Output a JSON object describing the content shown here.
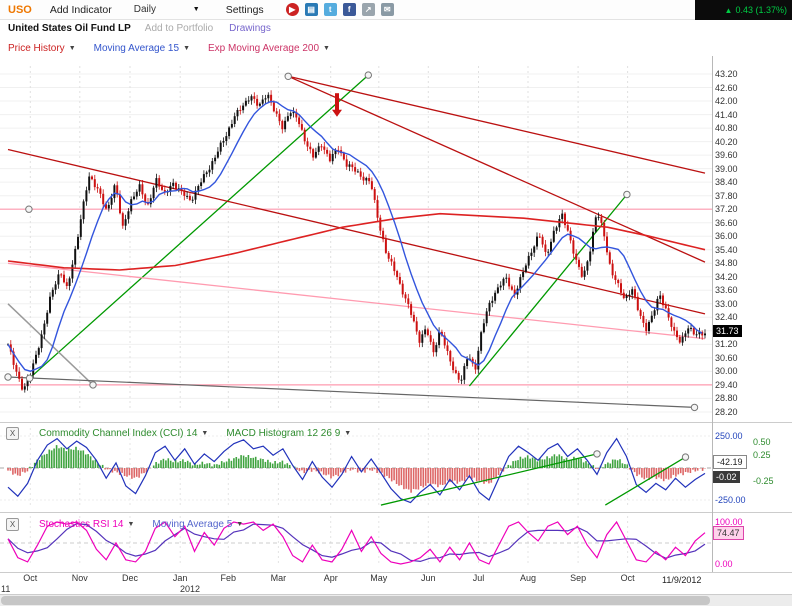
{
  "toolbar": {
    "symbol": "USO",
    "symbol_color": "#ee7700",
    "add_indicator_label": "Add Indicator",
    "timeframe_label": "Daily",
    "settings_label": "Settings",
    "change_text": "0.43 (1.37%)",
    "change_color": "#00cc44",
    "icons": [
      {
        "name": "record-icon",
        "glyph": "▶",
        "color": "#cc2222",
        "round": true
      },
      {
        "name": "blog-icon",
        "glyph": "▤",
        "color": "#2a7ab5"
      },
      {
        "name": "twitter-icon",
        "glyph": "t",
        "color": "#55acde"
      },
      {
        "name": "facebook-icon",
        "glyph": "f",
        "color": "#3b5998"
      },
      {
        "name": "share-icon",
        "glyph": "↗",
        "color": "#9aa5ad"
      },
      {
        "name": "mail-icon",
        "glyph": "✉",
        "color": "#8a9aa5"
      }
    ]
  },
  "subheader": {
    "symbol_name": "United States Oil Fund LP",
    "add_to_portfolio_label": "Add to Portfolio",
    "drawings_label": "Drawings"
  },
  "price_pane": {
    "indicators": [
      {
        "label": "Price History",
        "color": "#cc2222"
      },
      {
        "label": "Moving Average 15",
        "color": "#3355cc"
      },
      {
        "label": "Exp Moving Average 200",
        "color": "#cc3366"
      }
    ],
    "last_price": "31.73"
  },
  "cci_pane": {
    "close_label": "X",
    "indicators": [
      {
        "label": "Commodity Channel Index (CCI) 14",
        "color": "#2e8b2e"
      },
      {
        "label": "MACD Histogram 12 26 9",
        "color": "#2e8b2e"
      }
    ],
    "cci_value": "-42.19",
    "macd_value": "-0.02"
  },
  "stoch_pane": {
    "close_label": "X",
    "indicators": [
      {
        "label": "Stochastics RSI 14",
        "color": "#ee00bb"
      },
      {
        "label": "Moving Average 5",
        "color": "#5566cc"
      }
    ],
    "value": "74.47"
  },
  "x_axis": {
    "year_label": "2012",
    "left_partial_label": "11",
    "last_date_label": "11/9/2012"
  },
  "chart_data": [
    {
      "type": "candlestick",
      "title": "United States Oil Fund LP (USO) — Daily",
      "ylim": [
        28.2,
        43.2
      ],
      "y_tick_step": 0.6,
      "y_ticks": [
        "43.20",
        "42.60",
        "42.00",
        "41.40",
        "40.80",
        "40.20",
        "39.60",
        "39.00",
        "38.40",
        "37.80",
        "37.20",
        "36.60",
        "36.00",
        "35.40",
        "34.80",
        "34.20",
        "33.60",
        "33.00",
        "32.40",
        "31.20",
        "30.60",
        "30.00",
        "29.40",
        "28.80",
        "28.20"
      ],
      "last_price": 31.73,
      "x_months": [
        "Oct",
        "Nov",
        "Dec",
        "Jan",
        "Feb",
        "Mar",
        "Apr",
        "May",
        "Jun",
        "Jul",
        "Aug",
        "Sep",
        "Oct"
      ],
      "month_fracs": [
        0.032,
        0.103,
        0.175,
        0.247,
        0.316,
        0.388,
        0.463,
        0.532,
        0.603,
        0.675,
        0.746,
        0.818,
        0.889
      ],
      "up_color": "#111111",
      "down_color": "#cc1111",
      "ma15_color": "#3355dd",
      "ema200_color": "#dd2222",
      "close_path": [
        [
          0.0,
          31.2
        ],
        [
          0.01,
          30.1
        ],
        [
          0.022,
          29.2
        ],
        [
          0.034,
          30.0
        ],
        [
          0.048,
          31.6
        ],
        [
          0.062,
          33.4
        ],
        [
          0.075,
          34.5
        ],
        [
          0.085,
          33.6
        ],
        [
          0.096,
          35.3
        ],
        [
          0.106,
          37.1
        ],
        [
          0.116,
          38.6
        ],
        [
          0.13,
          38.1
        ],
        [
          0.142,
          37.0
        ],
        [
          0.154,
          38.4
        ],
        [
          0.165,
          36.3
        ],
        [
          0.177,
          37.6
        ],
        [
          0.188,
          38.3
        ],
        [
          0.2,
          37.2
        ],
        [
          0.212,
          38.6
        ],
        [
          0.224,
          37.8
        ],
        [
          0.236,
          38.4
        ],
        [
          0.25,
          37.9
        ],
        [
          0.262,
          37.6
        ],
        [
          0.275,
          38.3
        ],
        [
          0.288,
          39.0
        ],
        [
          0.3,
          39.7
        ],
        [
          0.312,
          40.4
        ],
        [
          0.324,
          41.3
        ],
        [
          0.336,
          41.7
        ],
        [
          0.348,
          42.3
        ],
        [
          0.36,
          41.7
        ],
        [
          0.372,
          42.4
        ],
        [
          0.384,
          41.4
        ],
        [
          0.394,
          40.8
        ],
        [
          0.404,
          41.6
        ],
        [
          0.415,
          41.2
        ],
        [
          0.426,
          40.3
        ],
        [
          0.438,
          39.5
        ],
        [
          0.45,
          40.1
        ],
        [
          0.462,
          39.4
        ],
        [
          0.474,
          39.9
        ],
        [
          0.486,
          39.2
        ],
        [
          0.498,
          38.9
        ],
        [
          0.51,
          38.6
        ],
        [
          0.52,
          38.4
        ],
        [
          0.532,
          36.6
        ],
        [
          0.544,
          35.1
        ],
        [
          0.556,
          34.4
        ],
        [
          0.568,
          33.4
        ],
        [
          0.58,
          32.4
        ],
        [
          0.59,
          31.4
        ],
        [
          0.6,
          31.9
        ],
        [
          0.61,
          30.8
        ],
        [
          0.62,
          31.9
        ],
        [
          0.63,
          30.8
        ],
        [
          0.64,
          30.0
        ],
        [
          0.65,
          29.6
        ],
        [
          0.66,
          30.7
        ],
        [
          0.67,
          30.1
        ],
        [
          0.68,
          31.9
        ],
        [
          0.692,
          33.1
        ],
        [
          0.704,
          33.8
        ],
        [
          0.715,
          34.1
        ],
        [
          0.726,
          33.4
        ],
        [
          0.738,
          34.3
        ],
        [
          0.75,
          35.3
        ],
        [
          0.762,
          36.1
        ],
        [
          0.772,
          35.1
        ],
        [
          0.784,
          36.3
        ],
        [
          0.795,
          36.9
        ],
        [
          0.805,
          36.1
        ],
        [
          0.815,
          34.9
        ],
        [
          0.825,
          34.1
        ],
        [
          0.835,
          35.4
        ],
        [
          0.845,
          37.1
        ],
        [
          0.855,
          36.1
        ],
        [
          0.865,
          34.5
        ],
        [
          0.875,
          33.8
        ],
        [
          0.885,
          33.2
        ],
        [
          0.895,
          33.7
        ],
        [
          0.905,
          32.6
        ],
        [
          0.915,
          31.9
        ],
        [
          0.925,
          32.5
        ],
        [
          0.935,
          33.4
        ],
        [
          0.945,
          32.7
        ],
        [
          0.955,
          31.7
        ],
        [
          0.965,
          31.3
        ],
        [
          0.975,
          32.0
        ],
        [
          0.985,
          31.6
        ],
        [
          0.995,
          31.73
        ]
      ],
      "ema200_path": [
        [
          0.0,
          34.9
        ],
        [
          0.08,
          34.6
        ],
        [
          0.16,
          34.5
        ],
        [
          0.24,
          34.7
        ],
        [
          0.32,
          35.2
        ],
        [
          0.4,
          35.8
        ],
        [
          0.48,
          36.4
        ],
        [
          0.56,
          36.8
        ],
        [
          0.62,
          37.0
        ],
        [
          0.68,
          36.9
        ],
        [
          0.74,
          36.8
        ],
        [
          0.8,
          36.6
        ],
        [
          0.86,
          36.4
        ],
        [
          0.92,
          36.0
        ],
        [
          1.0,
          35.4
        ]
      ],
      "overlays": {
        "horizontal_lines": [
          {
            "price": 37.2,
            "color": "#ff9bb0",
            "endpoint_x": 0.03
          },
          {
            "price": 29.4,
            "color": "#ff9bb0",
            "endpoint_x": null
          }
        ],
        "trend_lines": [
          {
            "x1": 0.031,
            "p1": 29.7,
            "x2": 0.517,
            "p2": 43.15,
            "color": "#009900",
            "w": 1.3,
            "ep": [
              true,
              true
            ]
          },
          {
            "x1": 0.662,
            "p1": 29.35,
            "x2": 0.888,
            "p2": 37.85,
            "color": "#009900",
            "w": 1.3,
            "ep": [
              false,
              true
            ]
          },
          {
            "x1": 0.402,
            "p1": 43.1,
            "x2": 1.0,
            "p2": 38.8,
            "color": "#bb1111",
            "w": 1.3,
            "ep": [
              true,
              false
            ]
          },
          {
            "x1": 0.402,
            "p1": 43.1,
            "x2": 1.0,
            "p2": 34.85,
            "color": "#bb1111",
            "w": 1.3,
            "ep": [
              false,
              false
            ]
          },
          {
            "x1": 0.0,
            "p1": 39.85,
            "x2": 1.0,
            "p2": 32.55,
            "color": "#bb1111",
            "w": 1.3,
            "ep": [
              false,
              false
            ]
          },
          {
            "x1": 0.0,
            "p1": 34.8,
            "x2": 1.0,
            "p2": 31.45,
            "color": "#ff9bb0",
            "w": 1.3,
            "ep": [
              false,
              false
            ]
          },
          {
            "x1": 0.0,
            "p1": 33.0,
            "x2": 0.122,
            "p2": 29.4,
            "color": "#9a9a9a",
            "w": 1.5,
            "ep": [
              false,
              true
            ]
          },
          {
            "x1": 0.0,
            "p1": 29.75,
            "x2": 0.985,
            "p2": 28.4,
            "color": "#666666",
            "w": 1.2,
            "ep": [
              true,
              true
            ]
          }
        ],
        "arrow": {
          "x": 0.472,
          "price_from": 42.35,
          "price_to": 41.3,
          "color": "#cc1111"
        }
      }
    },
    {
      "type": "line+histogram",
      "name": "Commodity Channel Index (CCI) 14 with MACD Histogram 12 26 9",
      "cci_ylim": [
        -250,
        250
      ],
      "cci_ticks": [
        "250.00",
        "-250.00"
      ],
      "macd_ticks": [
        "0.50",
        "0.25",
        "-0.25"
      ],
      "cci_last": -42.19,
      "macd_last": -0.02,
      "line_color": "#2233bb",
      "hist_up_color": "#3fa33f",
      "hist_down_color": "#dd6666",
      "cci_values": [
        -150,
        -220,
        -120,
        60,
        180,
        230,
        150,
        210,
        160,
        60,
        -80,
        40,
        -140,
        -200,
        -60,
        120,
        170,
        60,
        150,
        30,
        110,
        50,
        130,
        190,
        220,
        150,
        170,
        100,
        150,
        20,
        -90,
        50,
        -70,
        -150,
        -50,
        90,
        -30,
        70,
        -40,
        -160,
        -240,
        -270,
        -190,
        -130,
        -210,
        -90,
        -170,
        -60,
        -190,
        -250,
        -80,
        90,
        170,
        120,
        60,
        150,
        190,
        90,
        150,
        60,
        -50,
        120,
        230,
        90,
        -130,
        -190,
        -120,
        -170,
        -80,
        -150,
        -90,
        -42.19
      ],
      "macd_values": [
        -0.05,
        -0.15,
        -0.05,
        0.15,
        0.3,
        0.42,
        0.35,
        0.38,
        0.28,
        0.12,
        -0.02,
        -0.08,
        -0.15,
        -0.2,
        -0.08,
        0.08,
        0.18,
        0.12,
        0.15,
        0.06,
        0.1,
        0.05,
        0.12,
        0.18,
        0.24,
        0.2,
        0.16,
        0.1,
        0.12,
        0.02,
        -0.08,
        -0.04,
        -0.1,
        -0.18,
        -0.1,
        -0.02,
        -0.08,
        -0.03,
        -0.1,
        -0.22,
        -0.35,
        -0.45,
        -0.38,
        -0.3,
        -0.35,
        -0.25,
        -0.28,
        -0.18,
        -0.25,
        -0.3,
        -0.12,
        0.05,
        0.18,
        0.22,
        0.15,
        0.2,
        0.26,
        0.16,
        0.2,
        0.1,
        -0.02,
        0.08,
        0.18,
        0.06,
        -0.12,
        -0.22,
        -0.18,
        -0.24,
        -0.14,
        -0.1,
        -0.05,
        -0.02
      ],
      "trend_lines": [
        {
          "x1": 0.535,
          "v1": -290,
          "x2": 0.845,
          "v2": 110,
          "color": "#009900"
        },
        {
          "x1": 0.857,
          "v1": -290,
          "x2": 0.972,
          "v2": 85,
          "color": "#009900"
        }
      ]
    },
    {
      "type": "line",
      "name": "Stochastics RSI 14 with Moving Average 5",
      "ylim": [
        0,
        100
      ],
      "ticks": [
        "100.00",
        "0.00"
      ],
      "last": 74.47,
      "line_color": "#ee00bb",
      "ma_color": "#5533bb",
      "values": [
        60,
        15,
        5,
        45,
        90,
        100,
        95,
        100,
        80,
        35,
        10,
        50,
        10,
        5,
        30,
        85,
        100,
        65,
        90,
        30,
        75,
        45,
        85,
        100,
        95,
        100,
        80,
        95,
        65,
        20,
        5,
        45,
        10,
        5,
        35,
        80,
        30,
        65,
        25,
        5,
        0,
        5,
        15,
        35,
        5,
        40,
        10,
        50,
        10,
        0,
        45,
        90,
        100,
        75,
        55,
        90,
        100,
        70,
        90,
        45,
        15,
        70,
        100,
        55,
        10,
        5,
        30,
        10,
        40,
        20,
        55,
        74.47
      ]
    }
  ]
}
